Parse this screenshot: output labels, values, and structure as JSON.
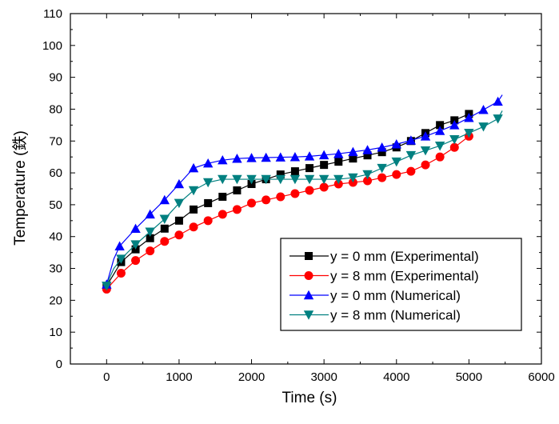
{
  "chart_data": {
    "type": "line",
    "xlabel": "Time (s)",
    "ylabel": "Temperature (鉄)",
    "xlim": [
      -500,
      6000
    ],
    "ylim": [
      0,
      110
    ],
    "xticks": [
      0,
      1000,
      2000,
      3000,
      4000,
      5000,
      6000
    ],
    "yticks": [
      0,
      10,
      20,
      30,
      40,
      50,
      60,
      70,
      80,
      90,
      100,
      110
    ],
    "grid": false,
    "legend_position": "bottom-right",
    "series": [
      {
        "name": "y = 0 mm (Experimental)",
        "color": "#000000",
        "marker": "square",
        "x": [
          0,
          200,
          400,
          600,
          800,
          1000,
          1200,
          1400,
          1600,
          1800,
          2000,
          2200,
          2400,
          2600,
          2800,
          3000,
          3200,
          3400,
          3600,
          3800,
          4000,
          4200,
          4400,
          4600,
          4800,
          5000
        ],
        "y": [
          24.5,
          32,
          36,
          39.5,
          42.5,
          45,
          48.5,
          50.5,
          52.5,
          54.5,
          56.5,
          58,
          59.5,
          60.5,
          61.5,
          62.5,
          63.5,
          64.5,
          65.5,
          66.5,
          68,
          70,
          72.5,
          75,
          76.5,
          78.5
        ]
      },
      {
        "name": "y = 8 mm (Experimental)",
        "color": "#ff0000",
        "marker": "circle",
        "x": [
          0,
          200,
          400,
          600,
          800,
          1000,
          1200,
          1400,
          1600,
          1800,
          2000,
          2200,
          2400,
          2600,
          2800,
          3000,
          3200,
          3400,
          3600,
          3800,
          4000,
          4200,
          4400,
          4600,
          4800,
          5000
        ],
        "y": [
          23.5,
          28.5,
          32.5,
          35.5,
          38.5,
          40.5,
          43,
          45,
          47,
          48.5,
          50.5,
          51.5,
          52.5,
          53.5,
          54.5,
          55.5,
          56.5,
          57,
          57.5,
          58.5,
          59.5,
          60.5,
          62.5,
          65,
          68,
          71.5
        ]
      },
      {
        "name": "y = 0 mm (Numerical)",
        "color": "#0000ff",
        "marker": "triangle-up",
        "x": [
          0,
          50,
          100,
          180,
          400,
          600,
          800,
          1000,
          1200,
          1400,
          1600,
          1800,
          2000,
          2200,
          2400,
          2600,
          2800,
          3000,
          3200,
          3400,
          3600,
          3800,
          4000,
          4200,
          4400,
          4600,
          4800,
          5000,
          5200,
          5400,
          5460
        ],
        "y": [
          25,
          29,
          33,
          37,
          42.5,
          47,
          51.5,
          56.5,
          61.5,
          63,
          64,
          64.5,
          64.7,
          64.8,
          64.9,
          65,
          65.2,
          65.6,
          66,
          66.6,
          67.2,
          68,
          69,
          70.2,
          71.5,
          73.2,
          75,
          77.3,
          79.8,
          82.4,
          84.5
        ]
      },
      {
        "name": "y = 8 mm (Numerical)",
        "color": "#008080",
        "marker": "triangle-down",
        "x": [
          0,
          50,
          100,
          200,
          400,
          600,
          800,
          1000,
          1200,
          1400,
          1600,
          1800,
          2000,
          2200,
          2400,
          2600,
          2800,
          3000,
          3200,
          3400,
          3600,
          3800,
          4000,
          4200,
          4400,
          4600,
          4800,
          5000,
          5200,
          5400,
          5460
        ],
        "y": [
          24.5,
          27.5,
          30,
          33,
          37.5,
          41.5,
          45.5,
          50.5,
          54.5,
          57,
          58,
          58,
          58,
          58,
          58,
          58,
          58,
          58,
          58,
          58.5,
          59.5,
          61.5,
          63.5,
          65.5,
          67,
          68.5,
          70.5,
          72.5,
          74.5,
          77,
          79.5
        ]
      }
    ]
  }
}
